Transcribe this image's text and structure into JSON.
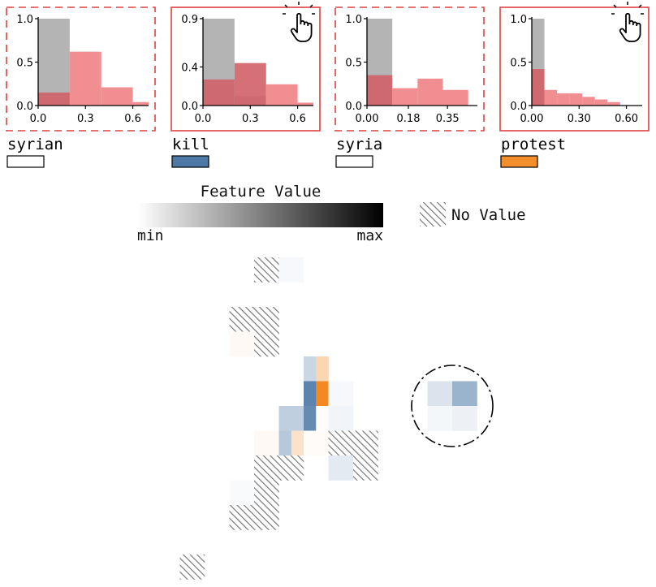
{
  "colors": {
    "gray_bar": "#b4b4b4",
    "red_bar": "#ee7a7e",
    "overlap_bar": "#d26068",
    "panel_border": "#dd4040",
    "kill_swatch": "#4e79a7",
    "protest_swatch": "#f28e2b",
    "no_value_hatch": "#777777"
  },
  "chart_data": [
    {
      "type": "bar",
      "feature": "syrian",
      "selected": false,
      "swatch_color": "#ffffff",
      "xlim": [
        0,
        0.7
      ],
      "ylim": [
        0,
        1.0
      ],
      "xticks": [
        "0.0",
        "0.3",
        "0.6"
      ],
      "xtick_values": [
        0.0,
        0.3,
        0.6
      ],
      "yticks": [
        "0.0",
        "0.5",
        "1.0"
      ],
      "ytick_values": [
        0.0,
        0.5,
        1.0
      ],
      "series": [
        {
          "name": "",
          "color": "gray",
          "bins": [
            [
              0,
              0.2,
              1.0
            ]
          ]
        },
        {
          "name": "",
          "color": "red",
          "bins": [
            [
              0,
              0.2,
              0.15
            ],
            [
              0.2,
              0.4,
              0.62
            ],
            [
              0.4,
              0.6,
              0.21
            ],
            [
              0.6,
              0.7,
              0.04
            ]
          ]
        }
      ]
    },
    {
      "type": "bar",
      "feature": "kill",
      "selected": true,
      "swatch_color": "#4e79a7",
      "xlim": [
        0,
        0.7
      ],
      "ylim": [
        0,
        0.9
      ],
      "xticks": [
        "0.0",
        "0.3",
        "0.6"
      ],
      "xtick_values": [
        0.0,
        0.3,
        0.6
      ],
      "yticks": [
        "0.0",
        "0.4",
        "0.9"
      ],
      "ytick_values": [
        0.0,
        0.4,
        0.9
      ],
      "series": [
        {
          "name": "",
          "color": "gray",
          "bins": [
            [
              0,
              0.2,
              0.9
            ],
            [
              0.2,
              0.4,
              0.1
            ]
          ]
        },
        {
          "name": "",
          "color": "red",
          "bins": [
            [
              0,
              0.2,
              0.27
            ],
            [
              0.2,
              0.4,
              0.44
            ],
            [
              0.4,
              0.6,
              0.22
            ],
            [
              0.6,
              0.7,
              0.03
            ]
          ]
        }
      ]
    },
    {
      "type": "bar",
      "feature": "syria",
      "selected": false,
      "swatch_color": "#ffffff",
      "xlim": [
        0,
        0.48
      ],
      "ylim": [
        0,
        1.0
      ],
      "xticks": [
        "0.00",
        "0.18",
        "0.35"
      ],
      "xtick_values": [
        0.0,
        0.18,
        0.35
      ],
      "yticks": [
        "0.0",
        "0.5",
        "1.0"
      ],
      "ytick_values": [
        0.0,
        0.5,
        1.0
      ],
      "series": [
        {
          "name": "",
          "color": "gray",
          "bins": [
            [
              0,
              0.11,
              1.0
            ]
          ]
        },
        {
          "name": "",
          "color": "red",
          "bins": [
            [
              0,
              0.11,
              0.35
            ],
            [
              0.11,
              0.22,
              0.2
            ],
            [
              0.22,
              0.33,
              0.31
            ],
            [
              0.33,
              0.44,
              0.18
            ]
          ]
        }
      ]
    },
    {
      "type": "bar",
      "feature": "protest",
      "selected": true,
      "swatch_color": "#f28e2b",
      "xlim": [
        0,
        0.7
      ],
      "ylim": [
        0,
        1.0
      ],
      "xticks": [
        "0.00",
        "0.30",
        "0.60"
      ],
      "xtick_values": [
        0.0,
        0.3,
        0.6
      ],
      "yticks": [
        "0.0",
        "0.5",
        "1.0"
      ],
      "ytick_values": [
        0.0,
        0.5,
        1.0
      ],
      "series": [
        {
          "name": "",
          "color": "gray",
          "bins": [
            [
              0,
              0.08,
              1.0
            ]
          ]
        },
        {
          "name": "",
          "color": "red",
          "bins": [
            [
              0,
              0.08,
              0.42
            ],
            [
              0.08,
              0.16,
              0.18
            ],
            [
              0.16,
              0.24,
              0.14
            ],
            [
              0.24,
              0.32,
              0.14
            ],
            [
              0.32,
              0.4,
              0.1
            ],
            [
              0.4,
              0.48,
              0.07
            ],
            [
              0.48,
              0.56,
              0.04
            ]
          ]
        }
      ]
    }
  ],
  "legend": {
    "title": "Feature Value",
    "min_label": "min",
    "max_label": "max",
    "no_value_label": "No Value"
  },
  "grid": {
    "cells": [
      {
        "col": 10,
        "row": 0,
        "kind": "hatch"
      },
      {
        "col": 11,
        "row": 0,
        "kind": "blue",
        "level": 0.05
      },
      {
        "col": 9,
        "row": 2,
        "kind": "hatch"
      },
      {
        "col": 10,
        "row": 2,
        "kind": "hatch"
      },
      {
        "col": 9,
        "row": 3,
        "kind": "orange",
        "level": 0.05
      },
      {
        "col": 10,
        "row": 3,
        "kind": "hatch"
      },
      {
        "col": 12,
        "row": 4,
        "kind": "blue",
        "level": 0.3,
        "half": "left"
      },
      {
        "col": 12,
        "row": 4,
        "kind": "orange",
        "level": 0.35,
        "half": "right"
      },
      {
        "col": 12,
        "row": 5,
        "kind": "blue",
        "level": 0.9,
        "half": "left"
      },
      {
        "col": 12,
        "row": 5,
        "kind": "orange",
        "level": 1.0,
        "half": "right"
      },
      {
        "col": 13,
        "row": 5,
        "kind": "blue",
        "level": 0.05
      },
      {
        "col": 11,
        "row": 6,
        "kind": "blue",
        "level": 0.35
      },
      {
        "col": 12,
        "row": 6,
        "kind": "blue",
        "level": 0.85,
        "half": "left"
      },
      {
        "col": 12,
        "row": 6,
        "kind": "orange",
        "level": 0.02,
        "half": "right"
      },
      {
        "col": 13,
        "row": 6,
        "kind": "blue",
        "level": 0.08
      },
      {
        "col": 10,
        "row": 7,
        "kind": "orange",
        "level": 0.05
      },
      {
        "col": 11,
        "row": 7,
        "kind": "blue",
        "level": 0.4,
        "half": "left"
      },
      {
        "col": 11,
        "row": 7,
        "kind": "orange",
        "level": 0.25,
        "half": "right"
      },
      {
        "col": 12,
        "row": 7,
        "kind": "orange",
        "level": 0.03
      },
      {
        "col": 13,
        "row": 7,
        "kind": "hatch"
      },
      {
        "col": 14,
        "row": 7,
        "kind": "hatch"
      },
      {
        "col": 10,
        "row": 8,
        "kind": "hatch"
      },
      {
        "col": 11,
        "row": 8,
        "kind": "hatch"
      },
      {
        "col": 13,
        "row": 8,
        "kind": "blue",
        "level": 0.15
      },
      {
        "col": 14,
        "row": 8,
        "kind": "hatch"
      },
      {
        "col": 9,
        "row": 9,
        "kind": "blue",
        "level": 0.04
      },
      {
        "col": 10,
        "row": 9,
        "kind": "hatch"
      },
      {
        "col": 9,
        "row": 10,
        "kind": "hatch"
      },
      {
        "col": 10,
        "row": 10,
        "kind": "hatch"
      },
      {
        "col": 7,
        "row": 12,
        "kind": "hatch"
      },
      {
        "col": 17,
        "row": 5,
        "kind": "blue",
        "level": 0.2
      },
      {
        "col": 18,
        "row": 5,
        "kind": "blue",
        "level": 0.55
      },
      {
        "col": 17,
        "row": 6,
        "kind": "blue",
        "level": 0.06
      },
      {
        "col": 18,
        "row": 6,
        "kind": "blue",
        "level": 0.1
      }
    ],
    "highlight": {
      "col_center": 18,
      "row_center": 6
    }
  }
}
